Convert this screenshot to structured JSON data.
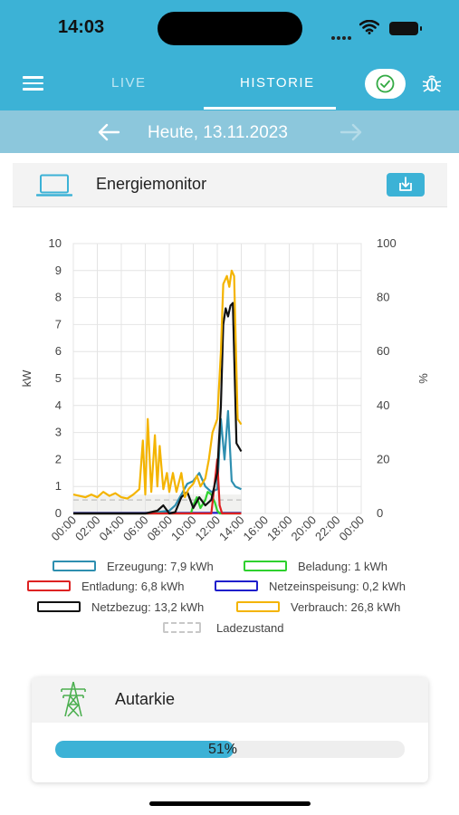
{
  "status_bar": {
    "time": "14:03"
  },
  "header": {
    "tabs": [
      {
        "label": "LIVE",
        "active": false
      },
      {
        "label": "HISTORIE",
        "active": true
      }
    ],
    "colors": {
      "accent": "#3cb2d6",
      "check": "#33aa44"
    }
  },
  "date_nav": {
    "label": "Heute, 13.11.2023"
  },
  "card": {
    "title": "Energiemonitor"
  },
  "chart_data": {
    "type": "line",
    "x_tick_labels": [
      "00:00",
      "02:00",
      "04:00",
      "06:00",
      "08:00",
      "10:00",
      "12:00",
      "14:00",
      "16:00",
      "18:00",
      "20:00",
      "22:00",
      "00:00"
    ],
    "xlim": [
      0,
      24
    ],
    "ylabel_left": "kW",
    "ylim_left": [
      0,
      10
    ],
    "y_ticks_left": [
      "0",
      "1",
      "2",
      "3",
      "4",
      "5",
      "6",
      "7",
      "8",
      "9",
      "10"
    ],
    "ylabel_right": "%",
    "ylim_right": [
      0,
      100
    ],
    "y_ticks_right": [
      "0",
      "20",
      "40",
      "60",
      "80",
      "100"
    ],
    "grid": true,
    "legend_position": "bottom",
    "series": [
      {
        "name": "Erzeugung: 7,9 kWh",
        "color": "#2e8fb0",
        "x": [
          0,
          6.5,
          7,
          8,
          8.5,
          9,
          9.5,
          10,
          10.5,
          11,
          11.5,
          12,
          12.3,
          12.6,
          12.9,
          13.2,
          13.5,
          14
        ],
        "y": [
          0,
          0,
          0.05,
          0.1,
          0.3,
          0.7,
          1.1,
          1.2,
          1.5,
          1.0,
          0.8,
          0.9,
          3.5,
          2.0,
          3.8,
          1.2,
          1.0,
          0.9
        ]
      },
      {
        "name": "Beladung: 1 kWh",
        "color": "#2ed12e",
        "x": [
          0,
          9.8,
          10,
          10.3,
          10.6,
          11,
          11.2,
          11.5,
          11.8,
          12,
          12.2,
          14
        ],
        "y": [
          0,
          0,
          0.3,
          0.6,
          0.2,
          0.5,
          0.8,
          0.7,
          0.4,
          0.1,
          0,
          0
        ]
      },
      {
        "name": "Entladung: 6,8 kWh",
        "color": "#dd2222",
        "x": [
          0,
          11.5,
          11.8,
          12,
          12.2,
          12.4,
          12.6,
          12.8,
          13,
          13.4,
          13.7,
          14
        ],
        "y": [
          0,
          0,
          1.2,
          2.0,
          0.3,
          0,
          0,
          0,
          0,
          0,
          0,
          0
        ]
      },
      {
        "name": "Netzeinspeisung: 0,2 kWh",
        "color": "#1f1fcc",
        "x": [
          0,
          14
        ],
        "y": [
          0.02,
          0.02
        ]
      },
      {
        "name": "Netzbezug: 13,2 kWh",
        "color": "#111111",
        "x": [
          0,
          6,
          6.5,
          7,
          7.5,
          8,
          8.5,
          9,
          9.5,
          10,
          10.5,
          11,
          11.5,
          12,
          12.3,
          12.5,
          12.7,
          12.9,
          13.1,
          13.3,
          13.6,
          14
        ],
        "y": [
          0,
          0,
          0.05,
          0.1,
          0.3,
          0,
          0.05,
          0.6,
          0.8,
          0.2,
          0.6,
          0.3,
          0.5,
          1.5,
          4.0,
          7.0,
          7.6,
          7.3,
          7.7,
          7.8,
          2.6,
          2.3
        ]
      },
      {
        "name": "Verbrauch: 26,8 kWh",
        "color": "#f4b400",
        "x": [
          0,
          0.5,
          1,
          1.5,
          2,
          2.5,
          3,
          3.5,
          4,
          4.5,
          5,
          5.5,
          5.8,
          6,
          6.2,
          6.5,
          6.8,
          7,
          7.2,
          7.5,
          7.8,
          8,
          8.3,
          8.6,
          9,
          9.3,
          9.6,
          10,
          10.3,
          10.6,
          11,
          11.3,
          11.6,
          12,
          12.3,
          12.5,
          12.8,
          13,
          13.2,
          13.4,
          13.7,
          14
        ],
        "y": [
          0.7,
          0.65,
          0.6,
          0.7,
          0.6,
          0.8,
          0.65,
          0.75,
          0.6,
          0.55,
          0.7,
          0.9,
          2.7,
          0.7,
          3.5,
          0.8,
          2.9,
          1.0,
          2.5,
          0.9,
          1.5,
          0.8,
          1.5,
          0.8,
          1.5,
          0.6,
          0.9,
          1.1,
          1.4,
          1.0,
          1.3,
          2.0,
          3.0,
          3.5,
          6.0,
          8.5,
          8.8,
          8.4,
          9.0,
          8.8,
          3.5,
          3.3
        ]
      },
      {
        "name": "Ladezustand",
        "color": "#c8c8c8",
        "x": [
          0,
          2,
          4,
          6,
          8,
          10,
          11,
          12,
          13,
          14
        ],
        "y": [
          5,
          5,
          5,
          5,
          5,
          5,
          5,
          5,
          5,
          5
        ]
      }
    ]
  },
  "legend_labels": [
    "Erzeugung: 7,9 kWh",
    "Beladung: 1 kWh",
    "Entladung: 6,8 kWh",
    "Netzeinspeisung: 0,2 kWh",
    "Netzbezug: 13,2 kWh",
    "Verbrauch: 26,8 kWh",
    "Ladezustand"
  ],
  "autarkie": {
    "title": "Autarkie",
    "percent": 51,
    "value_text": "51",
    "unit": "%"
  }
}
